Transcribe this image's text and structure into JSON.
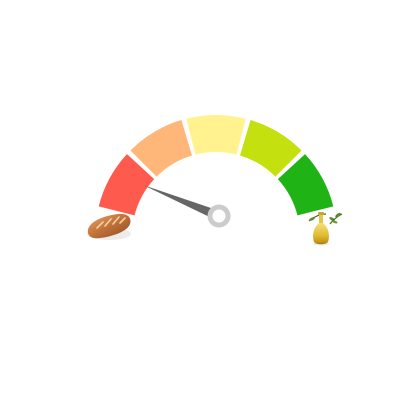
{
  "gauge": {
    "min": 0,
    "max": 1,
    "value": 0.06,
    "segments": [
      {
        "name": "very-low",
        "color": "#ff5a4e"
      },
      {
        "name": "low",
        "color": "#ffb679"
      },
      {
        "name": "medium",
        "color": "#fff28f"
      },
      {
        "name": "high",
        "color": "#c4e00f"
      },
      {
        "name": "very-high",
        "color": "#20b316"
      }
    ],
    "needle_color": "#666666",
    "hub_color": "#cccccc",
    "left_icon": "bread-icon",
    "right_icon": "olive-oil-bottle-icon"
  }
}
